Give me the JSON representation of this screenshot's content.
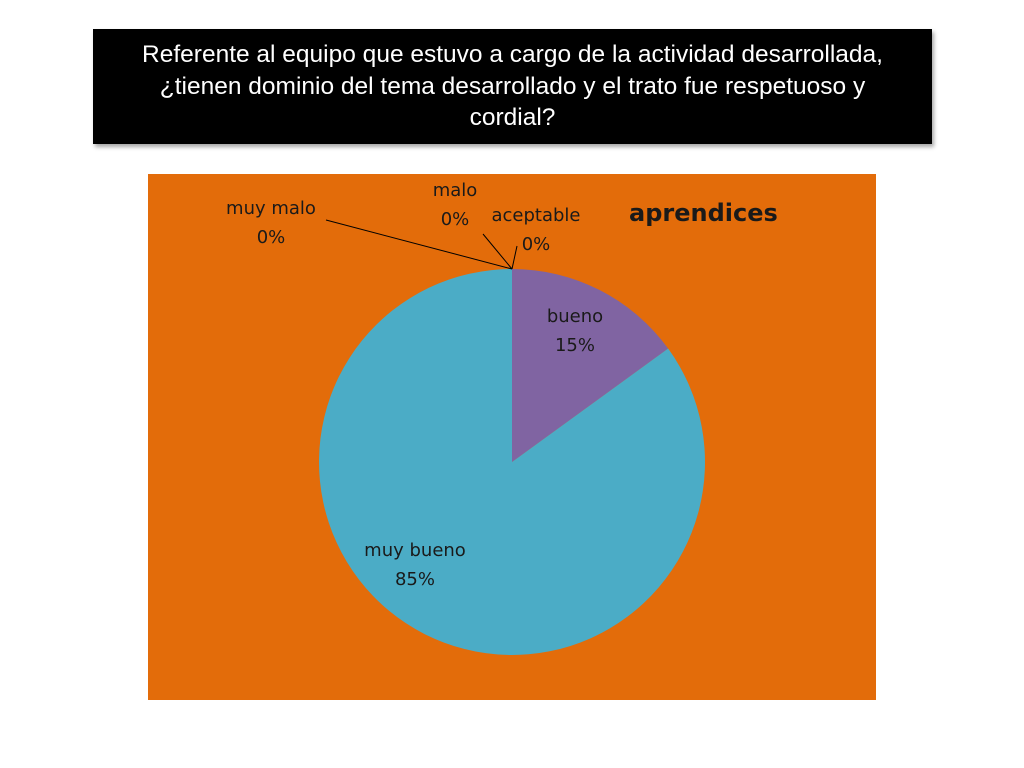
{
  "question_title": "Referente al equipo que estuvo a cargo de la actividad desarrollada, ¿tienen dominio del tema desarrollado y el trato fue respetuoso y cordial?",
  "colors": {
    "title_background": "#000000",
    "title_text": "#ffffff",
    "plot_background": "#e36c0a",
    "label_text": "#1a1a1a"
  },
  "chart_data": {
    "type": "pie",
    "title": "aprendices",
    "categories": [
      "muy malo",
      "malo",
      "aceptable",
      "bueno",
      "muy bueno"
    ],
    "values": [
      0,
      0,
      0,
      15,
      85
    ],
    "value_labels": [
      "0%",
      "0%",
      "0%",
      "15%",
      "85%"
    ],
    "colors": [
      "#4f81bd",
      "#c0504d",
      "#9bbb59",
      "#8064a2",
      "#4bacc6"
    ],
    "start_angle_deg": 0,
    "direction": "clockwise",
    "legend": "none",
    "data_labels": "category and percent"
  }
}
